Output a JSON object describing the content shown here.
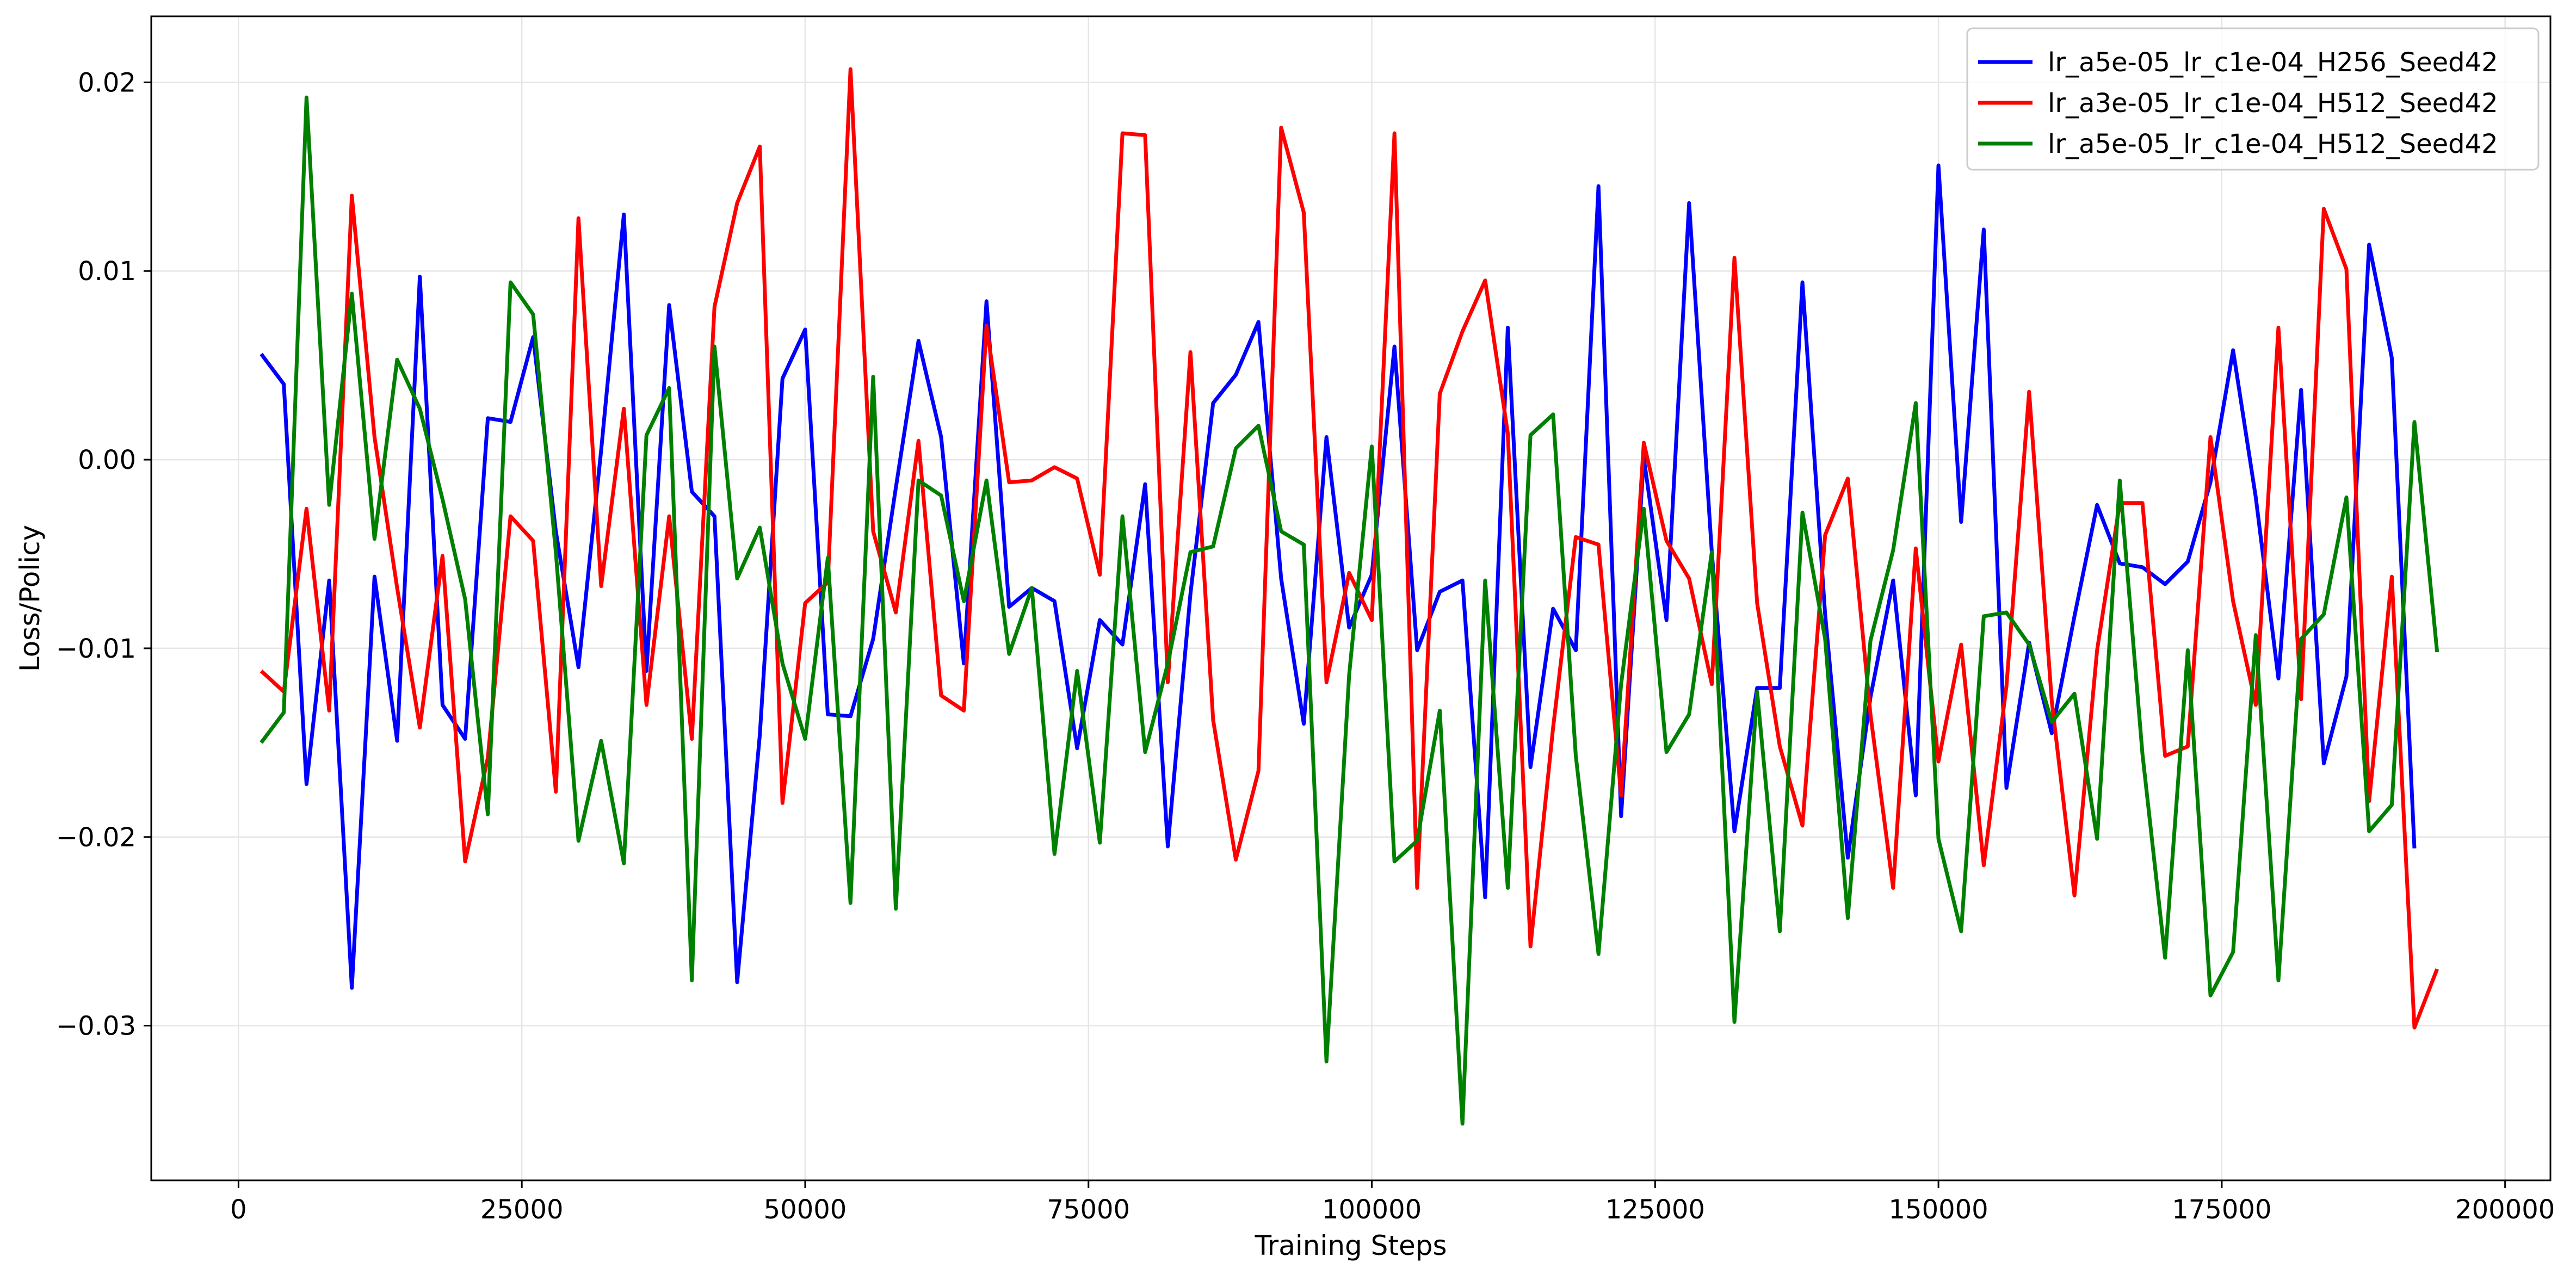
{
  "chart_data": {
    "type": "line",
    "title": "",
    "xlabel": "Training Steps",
    "ylabel": "Loss/Policy",
    "xlim": [
      -7700,
      204000
    ],
    "ylim": [
      -0.0382,
      0.0235
    ],
    "xticks": [
      0,
      25000,
      50000,
      75000,
      100000,
      125000,
      150000,
      175000,
      200000
    ],
    "xtick_labels": [
      "0",
      "25000",
      "50000",
      "75000",
      "100000",
      "125000",
      "150000",
      "175000",
      "200000"
    ],
    "yticks": [
      -0.03,
      -0.02,
      -0.01,
      0.0,
      0.01,
      0.02
    ],
    "ytick_labels": [
      "−0.03",
      "−0.02",
      "−0.01",
      "0.00",
      "0.01",
      "0.02"
    ],
    "grid": true,
    "legend_position": "top-right",
    "x_start": 2000,
    "x_step": 2000,
    "series": [
      {
        "name": "lr_a5e-05_lr_c1e-04_H256_Seed42",
        "color": "#0000ff",
        "values": [
          0.0056,
          0.004,
          -0.0172,
          -0.0064,
          -0.028,
          -0.0062,
          -0.0149,
          0.0097,
          -0.013,
          -0.0148,
          0.0022,
          0.002,
          0.0065,
          -0.0038,
          -0.011,
          0.0005,
          0.013,
          -0.0112,
          0.0082,
          -0.0017,
          -0.003,
          -0.0277,
          -0.0146,
          0.0043,
          0.0069,
          -0.0135,
          -0.0136,
          -0.0095,
          -0.0015,
          0.0063,
          0.0012,
          -0.0108,
          0.0084,
          -0.0078,
          -0.0068,
          -0.0075,
          -0.0153,
          -0.0085,
          -0.0098,
          -0.0013,
          -0.0205,
          -0.0071,
          0.003,
          0.0045,
          0.0073,
          -0.0063,
          -0.014,
          0.0012,
          -0.0089,
          -0.0061,
          0.006,
          -0.0101,
          -0.007,
          -0.0064,
          -0.0232,
          0.007,
          -0.0163,
          -0.0079,
          -0.0101,
          0.0145,
          -0.0189,
          0.0001,
          -0.0085,
          0.0136,
          -0.0049,
          -0.0197,
          -0.0121,
          -0.0121,
          0.0094,
          -0.0082,
          -0.0211,
          -0.0126,
          -0.0064,
          -0.0178,
          0.0156,
          -0.0033,
          0.0122,
          -0.0174,
          -0.0097,
          -0.0145,
          -0.0083,
          -0.0024,
          -0.0055,
          -0.0057,
          -0.0066,
          -0.0054,
          -0.0012,
          0.0058,
          -0.002,
          -0.0116,
          0.0037,
          -0.0161,
          -0.0115,
          0.0114,
          0.0054,
          -0.0206
        ]
      },
      {
        "name": "lr_a3e-05_lr_c1e-04_H512_Seed42",
        "color": "#ff0000",
        "values": [
          -0.0112,
          -0.0123,
          -0.0026,
          -0.0133,
          0.014,
          0.0012,
          -0.0068,
          -0.0142,
          -0.0051,
          -0.0213,
          -0.0158,
          -0.003,
          -0.0043,
          -0.0176,
          0.0128,
          -0.0067,
          0.0027,
          -0.013,
          -0.003,
          -0.0148,
          0.0081,
          0.0136,
          0.0166,
          -0.0182,
          -0.0076,
          -0.0065,
          0.0207,
          -0.0038,
          -0.0081,
          0.001,
          -0.0125,
          -0.0133,
          0.0071,
          -0.0012,
          -0.0011,
          -0.0004,
          -0.001,
          -0.0061,
          0.0173,
          0.0172,
          -0.0118,
          0.0057,
          -0.0138,
          -0.0212,
          -0.0165,
          0.0176,
          0.0131,
          -0.0118,
          -0.006,
          -0.0085,
          0.0173,
          -0.0227,
          0.0035,
          0.0068,
          0.0095,
          0.0014,
          -0.0258,
          -0.0142,
          -0.0041,
          -0.0045,
          -0.0178,
          0.0009,
          -0.0043,
          -0.0063,
          -0.0119,
          0.0107,
          -0.0076,
          -0.0152,
          -0.0194,
          -0.004,
          -0.001,
          -0.0135,
          -0.0227,
          -0.0047,
          -0.016,
          -0.0098,
          -0.0215,
          -0.012,
          0.0036,
          -0.0128,
          -0.0231,
          -0.0101,
          -0.0023,
          -0.0023,
          -0.0157,
          -0.0152,
          0.0012,
          -0.0075,
          -0.013,
          0.007,
          -0.0127,
          0.0133,
          0.0101,
          -0.0181,
          -0.0062,
          -0.0301,
          -0.027
        ]
      },
      {
        "name": "lr_a5e-05_lr_c1e-04_H512_Seed42",
        "color": "#008000",
        "values": [
          -0.015,
          -0.0134,
          0.0192,
          -0.0024,
          0.0088,
          -0.0042,
          0.0053,
          0.0027,
          -0.0021,
          -0.0074,
          -0.0188,
          0.0094,
          0.0077,
          -0.0049,
          -0.0202,
          -0.0149,
          -0.0214,
          0.0013,
          0.0038,
          -0.0276,
          0.006,
          -0.0063,
          -0.0036,
          -0.0108,
          -0.0148,
          -0.0052,
          -0.0235,
          0.0044,
          -0.0238,
          -0.0011,
          -0.0019,
          -0.0075,
          -0.0011,
          -0.0103,
          -0.0068,
          -0.0209,
          -0.0112,
          -0.0203,
          -0.003,
          -0.0155,
          -0.0108,
          -0.0049,
          -0.0046,
          0.0006,
          0.0018,
          -0.0038,
          -0.0045,
          -0.0319,
          -0.0114,
          0.0007,
          -0.0213,
          -0.0202,
          -0.0133,
          -0.0352,
          -0.0064,
          -0.0227,
          0.0013,
          0.0024,
          -0.0157,
          -0.0262,
          -0.0119,
          -0.0026,
          -0.0155,
          -0.0135,
          -0.0049,
          -0.0298,
          -0.0123,
          -0.025,
          -0.0028,
          -0.0095,
          -0.0243,
          -0.0096,
          -0.0048,
          0.003,
          -0.0201,
          -0.025,
          -0.0083,
          -0.0081,
          -0.0098,
          -0.0139,
          -0.0124,
          -0.0201,
          -0.0011,
          -0.0156,
          -0.0264,
          -0.0101,
          -0.0284,
          -0.0261,
          -0.0093,
          -0.0276,
          -0.0095,
          -0.0082,
          -0.002,
          -0.0197,
          -0.0183,
          0.002,
          -0.0102
        ]
      }
    ]
  }
}
